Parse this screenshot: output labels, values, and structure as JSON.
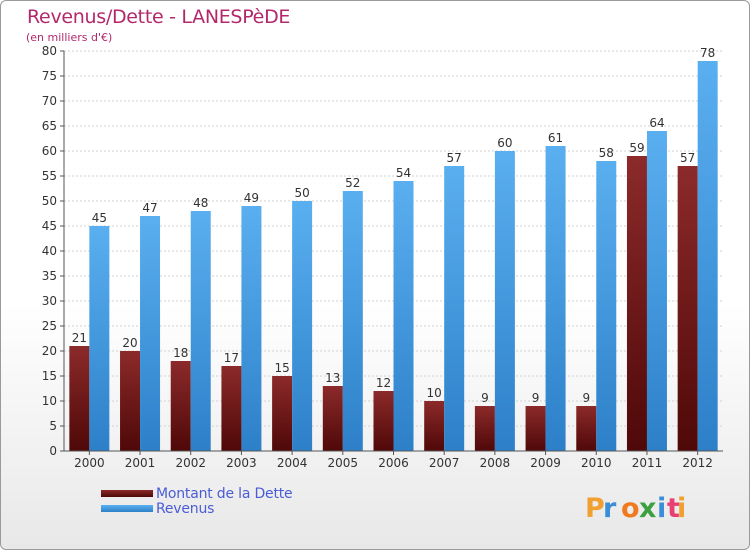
{
  "title": "Revenus/Dette - LANESPèDE",
  "subtitle": "(en milliers d'€)",
  "brand": "Proxiti",
  "colors": {
    "dette": "#6e1414",
    "revenus": "#3f9be6",
    "title": "#b3286b",
    "legend_text": "#4a5cd6"
  },
  "chart_data": {
    "type": "bar",
    "categories": [
      "2000",
      "2001",
      "2002",
      "2003",
      "2004",
      "2005",
      "2006",
      "2007",
      "2008",
      "2009",
      "2010",
      "2011",
      "2012"
    ],
    "series": [
      {
        "name": "Montant de la Dette",
        "values": [
          21,
          20,
          18,
          17,
          15,
          13,
          12,
          10,
          9,
          9,
          9,
          59,
          57
        ]
      },
      {
        "name": "Revenus",
        "values": [
          45,
          47,
          48,
          49,
          50,
          52,
          54,
          57,
          60,
          61,
          58,
          64,
          78
        ]
      }
    ],
    "ylim": [
      0,
      80
    ],
    "yticks": [
      0,
      5,
      10,
      15,
      20,
      25,
      30,
      35,
      40,
      45,
      50,
      55,
      60,
      65,
      70,
      75,
      80
    ],
    "grid": true,
    "legend_position": "bottom-left"
  }
}
